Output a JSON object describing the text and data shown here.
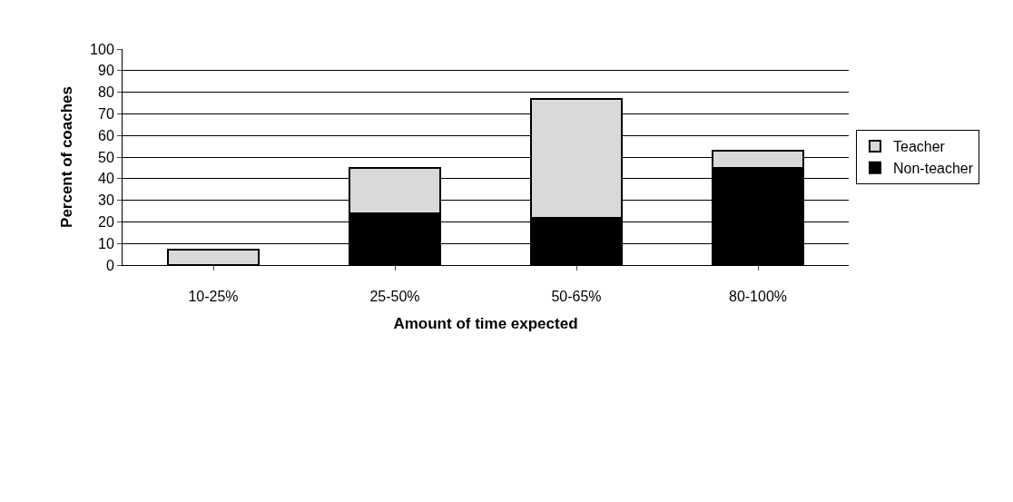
{
  "chart_data": {
    "type": "bar",
    "stacked": true,
    "xlabel": "Amount of time expected",
    "ylabel": "Percent of coaches",
    "categories": [
      "10-25%",
      "25-50%",
      "50-65%",
      "80-100%"
    ],
    "series": [
      {
        "name": "Non-teacher",
        "color": "#000000",
        "values": [
          0,
          24,
          22,
          45
        ]
      },
      {
        "name": "Teacher",
        "color": "#d9d9d9",
        "values": [
          7,
          21,
          55,
          8
        ]
      }
    ],
    "ylim": [
      0,
      100
    ],
    "yticks": [
      0,
      10,
      20,
      30,
      40,
      50,
      60,
      70,
      80,
      90,
      100
    ],
    "grid": "y",
    "legend": "right"
  }
}
